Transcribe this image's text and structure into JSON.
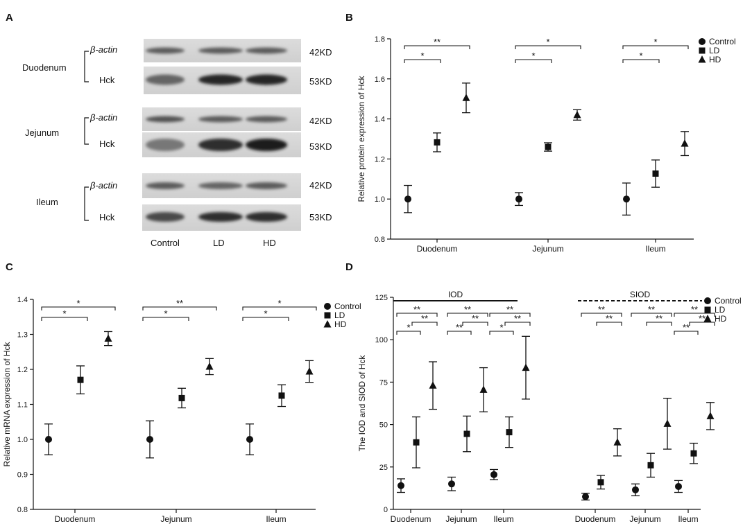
{
  "panels": {
    "a": "A",
    "b": "B",
    "c": "C",
    "d": "D"
  },
  "blot": {
    "groups": [
      {
        "tissue": "Duodenum",
        "rows": [
          {
            "label": "β-actin",
            "kd": "42KD"
          },
          {
            "label": "Hck",
            "kd": "53KD"
          }
        ]
      },
      {
        "tissue": "Jejunum",
        "rows": [
          {
            "label": "β-actin",
            "kd": "42KD"
          },
          {
            "label": "Hck",
            "kd": "53KD"
          }
        ]
      },
      {
        "tissue": "Ileum",
        "rows": [
          {
            "label": "β-actin",
            "kd": "42KD"
          },
          {
            "label": "Hck",
            "kd": "53KD"
          }
        ]
      }
    ],
    "lanes": [
      "Control",
      "LD",
      "HD"
    ],
    "band_intensity": [
      [
        [
          0.6,
          0.6,
          0.6
        ],
        [
          0.55,
          0.9,
          0.9
        ]
      ],
      [
        [
          0.65,
          0.6,
          0.6
        ],
        [
          0.45,
          0.85,
          0.95
        ]
      ],
      [
        [
          0.6,
          0.55,
          0.6
        ],
        [
          0.7,
          0.85,
          0.85
        ]
      ]
    ]
  },
  "chart_data": [
    {
      "type": "scatter",
      "panel": "B",
      "categories": [
        "Duodenum",
        "Jejunum",
        "Ileum"
      ],
      "ylabel": "Relative protein expression of Hck",
      "xlabel": "",
      "ylim": [
        0.8,
        1.8
      ],
      "yticks": [
        "0.8",
        "1.0",
        "1.2",
        "1.4",
        "1.6",
        "1.8"
      ],
      "series": [
        {
          "name": "Control",
          "marker": "circle",
          "values": [
            1.0,
            1.0,
            1.0
          ],
          "errors": [
            0.068,
            0.032,
            0.08
          ]
        },
        {
          "name": "LD",
          "marker": "square",
          "values": [
            1.283,
            1.26,
            1.127
          ],
          "errors": [
            0.047,
            0.021,
            0.068
          ]
        },
        {
          "name": "HD",
          "marker": "triangle",
          "values": [
            1.505,
            1.42,
            1.277
          ],
          "errors": [
            0.074,
            0.026,
            0.06
          ]
        }
      ],
      "legend": "top-right",
      "significance": [
        {
          "group": 0,
          "from": 0,
          "to": 1,
          "text": "*",
          "level": 0
        },
        {
          "group": 0,
          "from": 0,
          "to": 2,
          "text": "**",
          "level": 1
        },
        {
          "group": 1,
          "from": 0,
          "to": 1,
          "text": "*",
          "level": 0
        },
        {
          "group": 1,
          "from": 0,
          "to": 2,
          "text": "*",
          "level": 1
        },
        {
          "group": 2,
          "from": 0,
          "to": 1,
          "text": "*",
          "level": 0
        },
        {
          "group": 2,
          "from": 0,
          "to": 2,
          "text": "*",
          "level": 1
        }
      ]
    },
    {
      "type": "scatter",
      "panel": "C",
      "categories": [
        "Duodenum",
        "Jejunum",
        "Ileum"
      ],
      "ylabel": "Relative mRNA expression of Hck",
      "xlabel": "",
      "ylim": [
        0.8,
        1.4
      ],
      "yticks": [
        "0.8",
        "0.9",
        "1.0",
        "1.1",
        "1.2",
        "1.3",
        "1.4"
      ],
      "series": [
        {
          "name": "Control",
          "marker": "circle",
          "values": [
            1.0,
            1.0,
            1.0
          ],
          "errors": [
            0.044,
            0.053,
            0.044
          ]
        },
        {
          "name": "LD",
          "marker": "square",
          "values": [
            1.17,
            1.118,
            1.125
          ],
          "errors": [
            0.04,
            0.028,
            0.031
          ]
        },
        {
          "name": "HD",
          "marker": "triangle",
          "values": [
            1.288,
            1.208,
            1.194
          ],
          "errors": [
            0.02,
            0.023,
            0.031
          ]
        }
      ],
      "legend": "top-right",
      "significance": [
        {
          "group": 0,
          "from": 0,
          "to": 1,
          "text": "*",
          "level": 0
        },
        {
          "group": 0,
          "from": 0,
          "to": 2,
          "text": "*",
          "level": 1
        },
        {
          "group": 1,
          "from": 0,
          "to": 1,
          "text": "*",
          "level": 0
        },
        {
          "group": 1,
          "from": 0,
          "to": 2,
          "text": "**",
          "level": 1
        },
        {
          "group": 2,
          "from": 0,
          "to": 1,
          "text": "*",
          "level": 0
        },
        {
          "group": 2,
          "from": 0,
          "to": 2,
          "text": "*",
          "level": 1
        }
      ]
    },
    {
      "type": "scatter",
      "panel": "D",
      "categories": [
        "Duodenum",
        "Jejunum",
        "Ileum",
        "Duodenum",
        "Jejunum",
        "Ileum"
      ],
      "ylabel": "The IOD and SIOD of Hck",
      "xlabel": "",
      "ylim": [
        0,
        125
      ],
      "yticks": [
        "0",
        "25",
        "50",
        "75",
        "100",
        "125"
      ],
      "series": [
        {
          "name": "Control",
          "marker": "circle",
          "values": [
            14,
            15,
            20.5,
            7.5,
            11.5,
            13.5
          ],
          "errors": [
            4,
            4,
            3,
            2,
            3.5,
            3.5
          ]
        },
        {
          "name": "LD",
          "marker": "square",
          "values": [
            39.5,
            44.5,
            45.5,
            16,
            26,
            33
          ],
          "errors": [
            15,
            10.5,
            9,
            4,
            7,
            6
          ]
        },
        {
          "name": "HD",
          "marker": "triangle",
          "values": [
            73,
            70.5,
            83.5,
            39.5,
            50.5,
            55
          ],
          "errors": [
            14,
            13,
            18.5,
            8,
            15,
            8
          ]
        }
      ],
      "legend": "top-right",
      "group_labels": [
        {
          "text": "IOD",
          "line": "solid",
          "from": 0,
          "to": 2
        },
        {
          "text": "SIOD",
          "line": "dashed",
          "from": 3,
          "to": 5
        }
      ],
      "significance": [
        {
          "group": 0,
          "from": 0,
          "to": 1,
          "text": "*",
          "level": 0
        },
        {
          "group": 0,
          "from": 1,
          "to": 2,
          "text": "**",
          "level": 1
        },
        {
          "group": 0,
          "from": 0,
          "to": 2,
          "text": "**",
          "level": 2
        },
        {
          "group": 1,
          "from": 0,
          "to": 1,
          "text": "**",
          "level": 0
        },
        {
          "group": 1,
          "from": 1,
          "to": 2,
          "text": "**",
          "level": 1
        },
        {
          "group": 1,
          "from": 0,
          "to": 2,
          "text": "**",
          "level": 2
        },
        {
          "group": 2,
          "from": 0,
          "to": 1,
          "text": "*",
          "level": 0
        },
        {
          "group": 2,
          "from": 1,
          "to": 2,
          "text": "**",
          "level": 1
        },
        {
          "group": 2,
          "from": 0,
          "to": 2,
          "text": "**",
          "level": 2
        },
        {
          "group": 3,
          "from": 1,
          "to": 2,
          "text": "**",
          "level": 1
        },
        {
          "group": 3,
          "from": 0,
          "to": 2,
          "text": "**",
          "level": 2
        },
        {
          "group": 4,
          "from": 1,
          "to": 2,
          "text": "**",
          "level": 1
        },
        {
          "group": 4,
          "from": 0,
          "to": 2,
          "text": "**",
          "level": 2
        },
        {
          "group": 5,
          "from": 0,
          "to": 1,
          "text": "**",
          "level": 0
        },
        {
          "group": 5,
          "from": 1,
          "to": 2,
          "text": "**",
          "level": 1
        },
        {
          "group": 5,
          "from": 0,
          "to": 2,
          "text": "**",
          "level": 2
        }
      ]
    }
  ]
}
